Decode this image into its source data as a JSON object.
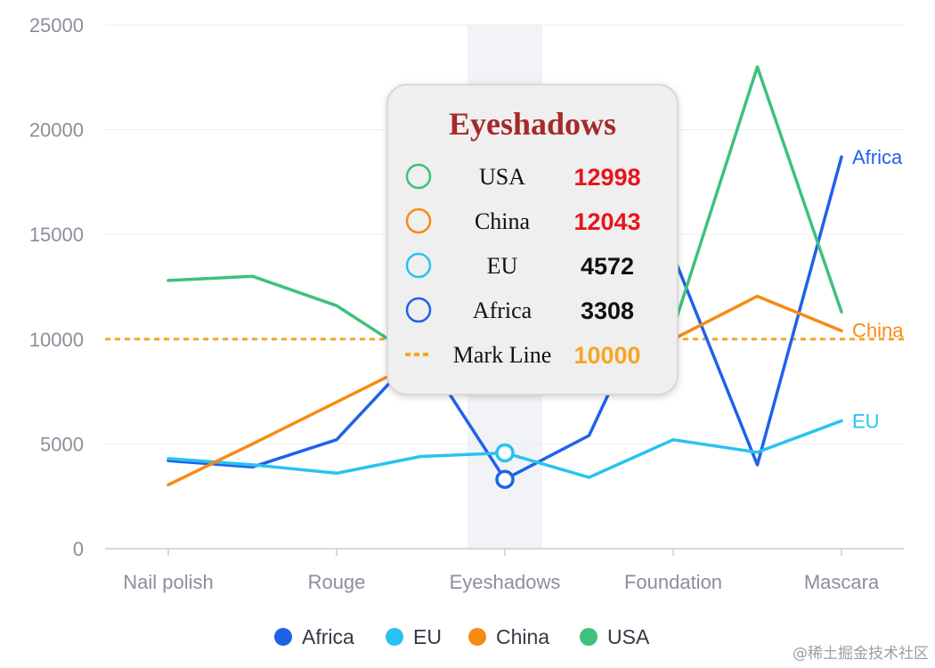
{
  "chart_data": {
    "type": "line",
    "categories": [
      "Nail polish",
      "",
      "Rouge",
      "",
      "Eyeshadows",
      "",
      "Foundation",
      "",
      "Mascara"
    ],
    "ylim": [
      0,
      25000
    ],
    "yticks": [
      0,
      5000,
      10000,
      15000,
      20000,
      25000
    ],
    "grid": true,
    "series": [
      {
        "name": "Africa",
        "color": "#1f62e8",
        "values": [
          4200,
          3900,
          5200,
          9500,
          3308,
          5400,
          14000,
          4000,
          18700
        ]
      },
      {
        "name": "EU",
        "color": "#28c3f2",
        "values": [
          4300,
          4000,
          3600,
          4400,
          4572,
          3400,
          5200,
          4600,
          6100
        ]
      },
      {
        "name": "China",
        "color": "#f68b14",
        "values": [
          3050,
          5000,
          7000,
          9000,
          12043,
          10500,
          10000,
          12050,
          10400
        ]
      },
      {
        "name": "USA",
        "color": "#3dc27c",
        "values": [
          12800,
          13000,
          11600,
          9000,
          12998,
          8800,
          10500,
          23000,
          11300
        ]
      }
    ],
    "end_labels": [
      "Africa",
      "China",
      "EU"
    ],
    "mark_line": {
      "name": "Mark Line",
      "value": 10000,
      "color": "#f5a623"
    },
    "highlight_category": "Eyeshadows",
    "tooltip": {
      "title": "Eyeshadows",
      "rows": [
        {
          "name": "USA",
          "value": "12998",
          "color": "#3dc27c",
          "value_color": "#e8141a"
        },
        {
          "name": "China",
          "value": "12043",
          "color": "#f68b14",
          "value_color": "#e8141a"
        },
        {
          "name": "EU",
          "value": "4572",
          "color": "#28c3f2",
          "value_color": "#111111"
        },
        {
          "name": "Africa",
          "value": "3308",
          "color": "#1f62e8",
          "value_color": "#111111"
        }
      ],
      "mark_row": {
        "name": "Mark Line",
        "value": "10000",
        "color": "#f5a623"
      }
    },
    "legend": {
      "position": "bottom-center",
      "items": [
        "Africa",
        "EU",
        "China",
        "USA"
      ]
    }
  },
  "watermark": "@稀土掘金技术社区"
}
